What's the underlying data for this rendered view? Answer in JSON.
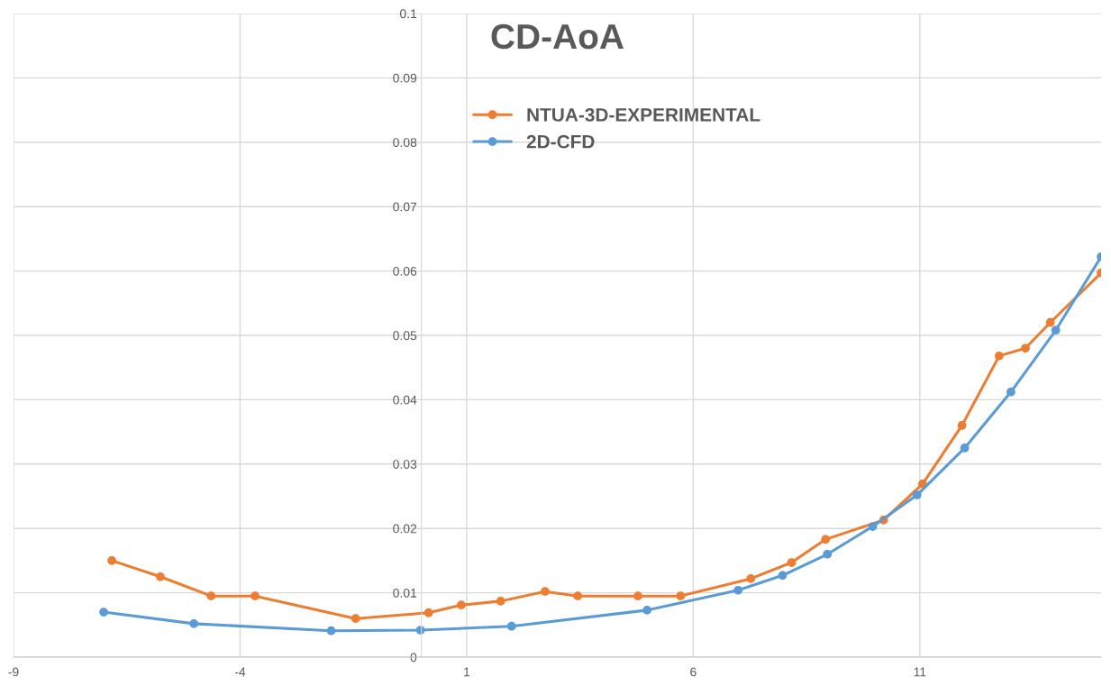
{
  "chart_data": {
    "type": "line",
    "title": "CD-AoA",
    "xlim": [
      -9,
      15
    ],
    "xticks": [
      -9,
      -4,
      1,
      6,
      11
    ],
    "ylim": [
      0,
      0.1
    ],
    "yticks": [
      0,
      0.01,
      0.02,
      0.03,
      0.04,
      0.05,
      0.06,
      0.07,
      0.08,
      0.09,
      0.1
    ],
    "grid": true,
    "legend": "top",
    "marker": "circle",
    "line_style": "solid",
    "series": [
      {
        "name": "NTUA-3D-EXPERIMENTAL",
        "color": "#ed7d31",
        "x": [
          -6.83,
          -5.76,
          -4.64,
          -3.67,
          -1.45,
          0.16,
          0.88,
          1.75,
          2.73,
          3.45,
          4.78,
          5.72,
          7.27,
          8.17,
          8.92,
          10.2,
          11.06,
          11.93,
          12.75,
          13.33,
          13.88,
          15.0
        ],
        "values": [
          0.015,
          0.0125,
          0.0095,
          0.0095,
          0.006,
          0.0069,
          0.0081,
          0.0087,
          0.0102,
          0.0095,
          0.0095,
          0.0095,
          0.0122,
          0.0147,
          0.0183,
          0.0213,
          0.0269,
          0.036,
          0.0468,
          0.048,
          0.052,
          0.0597
        ]
      },
      {
        "name": "2D-CFD",
        "color": "#5b9bd5",
        "x": [
          -7.01,
          -5.02,
          -1.99,
          -0.02,
          1.99,
          4.98,
          6.99,
          7.97,
          8.96,
          9.96,
          10.94,
          11.99,
          13.01,
          14.0,
          15.0
        ],
        "values": [
          0.007,
          0.0052,
          0.0041,
          0.0042,
          0.0048,
          0.0073,
          0.0104,
          0.0127,
          0.016,
          0.0203,
          0.0252,
          0.0325,
          0.0412,
          0.0508,
          0.0622
        ]
      }
    ]
  }
}
